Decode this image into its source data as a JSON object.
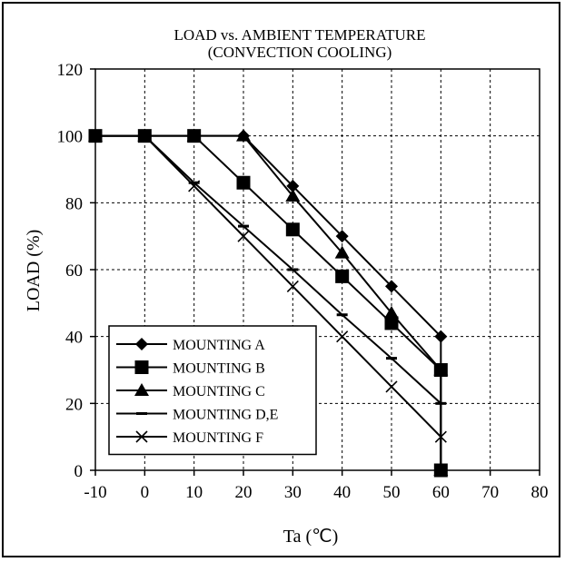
{
  "chart_data": {
    "type": "line",
    "title": "LOAD vs. AMBIENT TEMPERATURE",
    "subtitle": "(CONVECTION COOLING)",
    "xlabel": "Ta (℃)",
    "ylabel": "LOAD (%)",
    "xlim": [
      -10,
      80
    ],
    "ylim": [
      0,
      120
    ],
    "xticks": [
      "-10",
      "0",
      "10",
      "20",
      "30",
      "40",
      "50",
      "60",
      "70",
      "80"
    ],
    "yticks": [
      "0",
      "20",
      "40",
      "60",
      "80",
      "100",
      "120"
    ],
    "grid": true,
    "legend_position": "bottom-left",
    "series": [
      {
        "name": "MOUNTING A",
        "marker": "diamond",
        "x": [
          -10,
          0,
          10,
          20,
          30,
          40,
          50,
          60,
          60
        ],
        "y": [
          100,
          100,
          100,
          100,
          85,
          70,
          55,
          40,
          0
        ]
      },
      {
        "name": "MOUNTING B",
        "marker": "square",
        "x": [
          -10,
          0,
          10,
          20,
          30,
          40,
          50,
          60,
          60
        ],
        "y": [
          100,
          100,
          100,
          86,
          72,
          58,
          44,
          30,
          0
        ]
      },
      {
        "name": "MOUNTING C",
        "marker": "triangle",
        "x": [
          -10,
          0,
          10,
          20,
          30,
          40,
          50,
          60,
          60
        ],
        "y": [
          100,
          100,
          100,
          100,
          82,
          65,
          47,
          30,
          0
        ]
      },
      {
        "name": "MOUNTING D,E",
        "marker": "dash",
        "x": [
          -10,
          0,
          10,
          20,
          30,
          40,
          50,
          60,
          60
        ],
        "y": [
          100,
          100,
          86,
          73,
          60,
          46.5,
          33.5,
          20,
          0
        ]
      },
      {
        "name": "MOUNTING F",
        "marker": "x",
        "x": [
          -10,
          0,
          10,
          20,
          30,
          40,
          50,
          60,
          60
        ],
        "y": [
          100,
          100,
          85,
          70,
          55,
          40,
          25,
          10,
          0
        ]
      }
    ]
  }
}
